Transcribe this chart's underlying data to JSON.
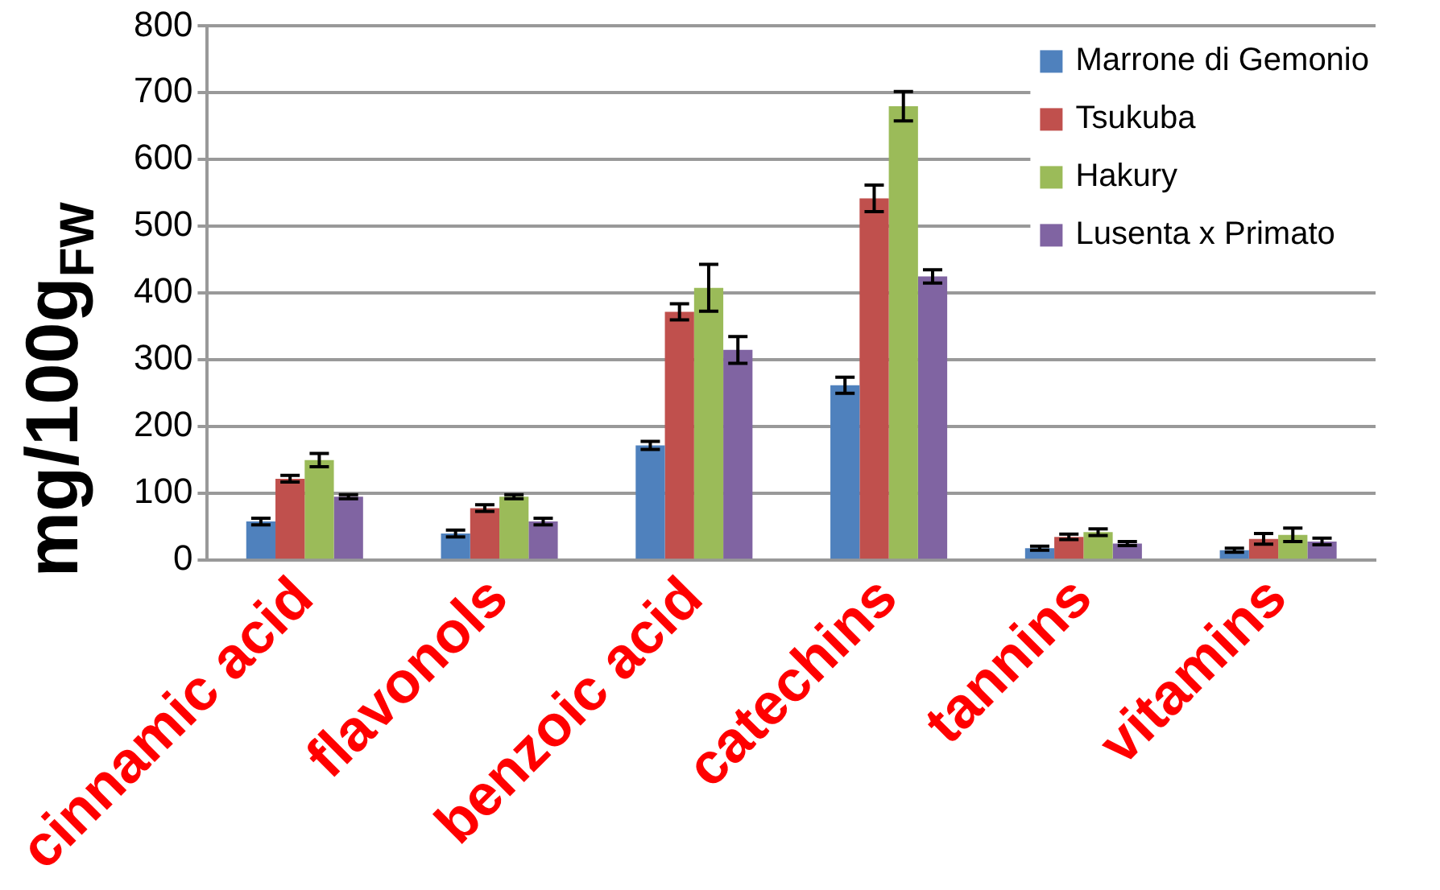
{
  "chart_data": {
    "type": "bar",
    "ylabel": "mg/100g$_{FW}$",
    "categories": [
      "cinnamic acid",
      "flavonols",
      "benzoic acid",
      "catechins",
      "tannins",
      "vitamins"
    ],
    "series": [
      {
        "name": "Marrone di Gemonio",
        "color": "#4f81bd",
        "values": [
          58,
          40,
          172,
          262,
          18,
          15
        ],
        "errors": [
          5,
          5,
          6,
          12,
          3,
          3
        ]
      },
      {
        "name": "Tsukuba",
        "color": "#c0504d",
        "values": [
          122,
          78,
          372,
          542,
          35,
          32
        ],
        "errors": [
          5,
          5,
          12,
          20,
          4,
          8
        ]
      },
      {
        "name": "Hakury",
        "color": "#9bbb59",
        "values": [
          150,
          95,
          408,
          680,
          42,
          38
        ],
        "errors": [
          10,
          3,
          35,
          22,
          5,
          10
        ]
      },
      {
        "name": "Lusenta x Primato",
        "color": "#8064a2",
        "values": [
          95,
          58,
          315,
          425,
          25,
          28
        ],
        "errors": [
          3,
          5,
          20,
          10,
          3,
          5
        ]
      }
    ],
    "ylim": [
      0,
      800
    ],
    "yticks": [
      0,
      100,
      200,
      300,
      400,
      500,
      600,
      700,
      800
    ],
    "grid": "y",
    "legend": "top right"
  }
}
